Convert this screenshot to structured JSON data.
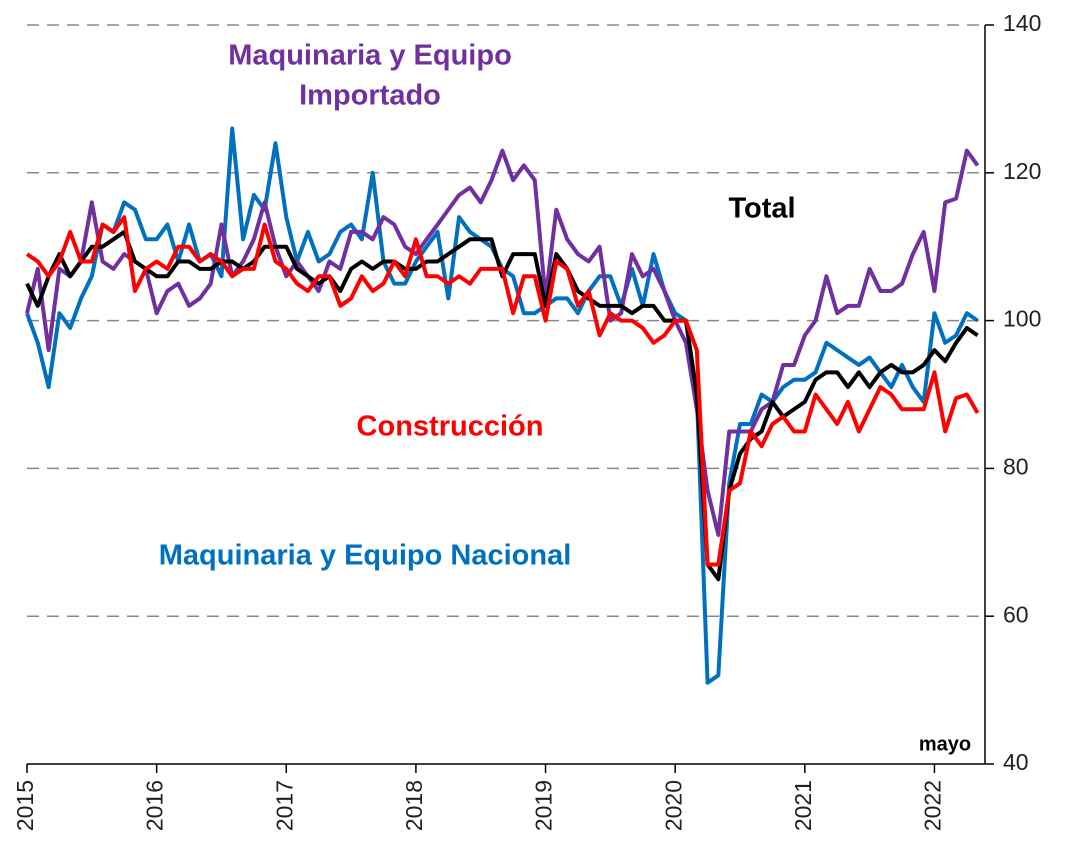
{
  "chart_data": {
    "type": "line",
    "x": [
      2015,
      2015.083,
      2015.167,
      2015.25,
      2015.333,
      2015.417,
      2015.5,
      2015.583,
      2015.667,
      2015.75,
      2015.833,
      2015.917,
      2016,
      2016.083,
      2016.167,
      2016.25,
      2016.333,
      2016.417,
      2016.5,
      2016.583,
      2016.667,
      2016.75,
      2016.833,
      2016.917,
      2017,
      2017.083,
      2017.167,
      2017.25,
      2017.333,
      2017.417,
      2017.5,
      2017.583,
      2017.667,
      2017.75,
      2017.833,
      2017.917,
      2018,
      2018.083,
      2018.167,
      2018.25,
      2018.333,
      2018.417,
      2018.5,
      2018.583,
      2018.667,
      2018.75,
      2018.833,
      2018.917,
      2019,
      2019.083,
      2019.167,
      2019.25,
      2019.333,
      2019.417,
      2019.5,
      2019.583,
      2019.667,
      2019.75,
      2019.833,
      2019.917,
      2020,
      2020.083,
      2020.167,
      2020.25,
      2020.333,
      2020.417,
      2020.5,
      2020.583,
      2020.667,
      2020.75,
      2020.833,
      2020.917,
      2021,
      2021.083,
      2021.167,
      2021.25,
      2021.333,
      2021.417,
      2021.5,
      2021.583,
      2021.667,
      2021.75,
      2021.833,
      2021.917,
      2022,
      2022.083,
      2022.167,
      2022.25,
      2022.333
    ],
    "series": [
      {
        "name": "Maquinaria y Equipo Nacional",
        "color": "#0070c0",
        "values": [
          101,
          97,
          91,
          101,
          99,
          103,
          106,
          113,
          112,
          116,
          115,
          111,
          111,
          113,
          108,
          113,
          108,
          109,
          106,
          126,
          111,
          117,
          115,
          124,
          114,
          108,
          112,
          108,
          109,
          112,
          113,
          111,
          120,
          108,
          105,
          105,
          108,
          110,
          112,
          103,
          114,
          112,
          111,
          110,
          107,
          106,
          101,
          101,
          102,
          103,
          103,
          101,
          104,
          106,
          106,
          102,
          107,
          102,
          109,
          104,
          101,
          100,
          90,
          51,
          52,
          78,
          86,
          86,
          90,
          89,
          91,
          92,
          92,
          93,
          97,
          96,
          95,
          94,
          95,
          93,
          91,
          94,
          91,
          89,
          101,
          97,
          98,
          101,
          100
        ]
      },
      {
        "name": "Maquinaria y Equipo Importado",
        "color": "#7030a0",
        "values": [
          101,
          107,
          96,
          107,
          106,
          108,
          116,
          108,
          107,
          109,
          108,
          107,
          101,
          104,
          105,
          102,
          103,
          105,
          113,
          106,
          108,
          111,
          116,
          110,
          106,
          108,
          106,
          104,
          108,
          107,
          112,
          112,
          111,
          114,
          113,
          110,
          109,
          111,
          113,
          115,
          117,
          118,
          116,
          119,
          123,
          119,
          121,
          119,
          103,
          115,
          111,
          109,
          108,
          110,
          100,
          101,
          109,
          106,
          107,
          104,
          100,
          97,
          88,
          77,
          71,
          85,
          85,
          85,
          88,
          89,
          94,
          94,
          98,
          100,
          106,
          101,
          102,
          102,
          107,
          104,
          104,
          105,
          109,
          112,
          104,
          116,
          116.5,
          123,
          121
        ]
      },
      {
        "name": "Total",
        "color": "#000000",
        "values": [
          105,
          102,
          106,
          109,
          106,
          108,
          110,
          110,
          111,
          112,
          108,
          107,
          106,
          106,
          108,
          108,
          107,
          107,
          108,
          108,
          107,
          108,
          110,
          110,
          110,
          107,
          106,
          105,
          106,
          104,
          107,
          108,
          107,
          108,
          108,
          107,
          107,
          108,
          108,
          109,
          110,
          111,
          111,
          111,
          106,
          109,
          109,
          109,
          102,
          109,
          107,
          104,
          103,
          102,
          102,
          102,
          101,
          102,
          102,
          100,
          100,
          100,
          90,
          67,
          65,
          77,
          82,
          84,
          85,
          89,
          87,
          88,
          89,
          92,
          93,
          93,
          91,
          93,
          91,
          93,
          94,
          93,
          93,
          94,
          96,
          94.5,
          97,
          99,
          98
        ]
      },
      {
        "name": "Construcción",
        "color": "#ff0000",
        "values": [
          109,
          108,
          106,
          108,
          112,
          108,
          108,
          113,
          112,
          114,
          104,
          107,
          108,
          107,
          110,
          110,
          108,
          109,
          108,
          106,
          107,
          107,
          113,
          108,
          107,
          105,
          104,
          106,
          106,
          102,
          103,
          106,
          104,
          105,
          108,
          106,
          111,
          106,
          106,
          105,
          106,
          105,
          107,
          107,
          107,
          101,
          106,
          106,
          100,
          108,
          107,
          102,
          104,
          98,
          101,
          100,
          100,
          99,
          97,
          98,
          100,
          100,
          96,
          67,
          67,
          77,
          78,
          85,
          83,
          86,
          87,
          85,
          85,
          90,
          88,
          86,
          89,
          85,
          88,
          91,
          90,
          88,
          88,
          88,
          93,
          85,
          89.5,
          90,
          87.5
        ]
      }
    ],
    "annotations": [
      "Maquinaria y Equipo",
      "Importado",
      "Total",
      "Construcción",
      "Maquinaria y Equipo Nacional",
      "mayo"
    ],
    "xlim": [
      2015,
      2022.39
    ],
    "xticks": [
      2015,
      2016,
      2017,
      2018,
      2019,
      2020,
      2021,
      2022
    ],
    "ylim": [
      40,
      140
    ],
    "yticks": [
      40,
      60,
      80,
      100,
      120,
      140
    ],
    "grid": true
  }
}
